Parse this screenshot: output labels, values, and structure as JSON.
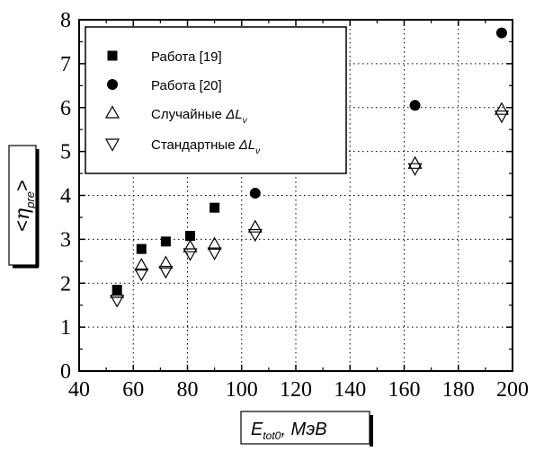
{
  "chart_data": {
    "type": "scatter",
    "xlim": [
      40,
      200
    ],
    "ylim": [
      0,
      8
    ],
    "x_ticks": [
      "40",
      "60",
      "80",
      "100",
      "120",
      "140",
      "160",
      "180",
      "200"
    ],
    "y_ticks": [
      "0",
      "1",
      "2",
      "3",
      "4",
      "5",
      "6",
      "7",
      "8"
    ],
    "grid": true,
    "legend_position": "top-left",
    "xlabel": {
      "main": "E",
      "sub": "tot0",
      "rest": ", МэВ"
    },
    "ylabel": {
      "open": "<",
      "main": "η",
      "sub": "pre",
      "close": ">"
    },
    "series": [
      {
        "name": "Работа [19]",
        "marker": "square",
        "x": [
          54,
          63,
          72,
          81,
          90
        ],
        "y": [
          1.85,
          2.78,
          2.95,
          3.08,
          3.72
        ]
      },
      {
        "name": "Работа [20]",
        "marker": "circle",
        "x": [
          105,
          164,
          196
        ],
        "y": [
          4.05,
          6.05,
          7.7
        ]
      },
      {
        "name_main": "Случайные ",
        "name_italic": "ΔL",
        "name_sub": "ν",
        "marker": "triangle-up",
        "x": [
          54,
          63,
          72,
          81,
          90,
          105,
          164,
          196
        ],
        "y": [
          1.78,
          2.4,
          2.45,
          2.82,
          2.88,
          3.27,
          4.72,
          5.95
        ]
      },
      {
        "name_main": "Стандартные ",
        "name_italic": "ΔL",
        "name_sub": "ν",
        "marker": "triangle-down",
        "x": [
          54,
          63,
          72,
          81,
          90,
          105,
          164,
          196
        ],
        "y": [
          1.62,
          2.22,
          2.28,
          2.68,
          2.7,
          3.12,
          4.62,
          5.82
        ]
      }
    ]
  }
}
